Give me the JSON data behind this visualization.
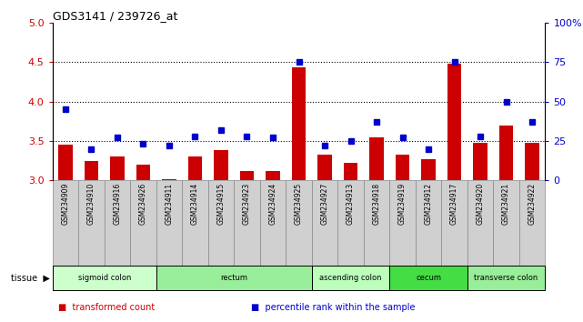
{
  "title": "GDS3141 / 239726_at",
  "samples": [
    "GSM234909",
    "GSM234910",
    "GSM234916",
    "GSM234926",
    "GSM234911",
    "GSM234914",
    "GSM234915",
    "GSM234923",
    "GSM234924",
    "GSM234925",
    "GSM234927",
    "GSM234913",
    "GSM234918",
    "GSM234919",
    "GSM234912",
    "GSM234917",
    "GSM234920",
    "GSM234921",
    "GSM234922"
  ],
  "bar_values": [
    3.45,
    3.25,
    3.3,
    3.2,
    3.02,
    3.3,
    3.38,
    3.12,
    3.12,
    4.43,
    3.32,
    3.22,
    3.55,
    3.33,
    3.27,
    4.48,
    3.47,
    3.7,
    3.47
  ],
  "dot_values": [
    45,
    20,
    27,
    23,
    22,
    28,
    32,
    28,
    27,
    75,
    22,
    25,
    37,
    27,
    20,
    75,
    28,
    50,
    37
  ],
  "ylim_left": [
    3.0,
    5.0
  ],
  "ylim_right": [
    0,
    100
  ],
  "yticks_left": [
    3.0,
    3.5,
    4.0,
    4.5,
    5.0
  ],
  "yticks_right": [
    0,
    25,
    50,
    75,
    100
  ],
  "ytick_labels_right": [
    "0",
    "25",
    "50",
    "75",
    "100%"
  ],
  "hlines": [
    3.5,
    4.0,
    4.5
  ],
  "tissue_groups": [
    {
      "label": "sigmoid colon",
      "start": 0,
      "end": 4,
      "color": "#ccffcc"
    },
    {
      "label": "rectum",
      "start": 4,
      "end": 10,
      "color": "#99ee99"
    },
    {
      "label": "ascending colon",
      "start": 10,
      "end": 13,
      "color": "#bbffbb"
    },
    {
      "label": "cecum",
      "start": 13,
      "end": 16,
      "color": "#44dd44"
    },
    {
      "label": "transverse colon",
      "start": 16,
      "end": 19,
      "color": "#99ee99"
    }
  ],
  "bar_color": "#cc0000",
  "dot_color": "#0000cc",
  "bar_width": 0.55,
  "ylabel_left_color": "#cc0000",
  "ylabel_right_color": "#0000cc",
  "cell_bg": "#d0d0d0",
  "cell_edge": "#888888",
  "tissue_label": "tissue",
  "legend_items": [
    {
      "color": "#cc0000",
      "label": "transformed count"
    },
    {
      "color": "#0000cc",
      "label": "percentile rank within the sample"
    }
  ]
}
